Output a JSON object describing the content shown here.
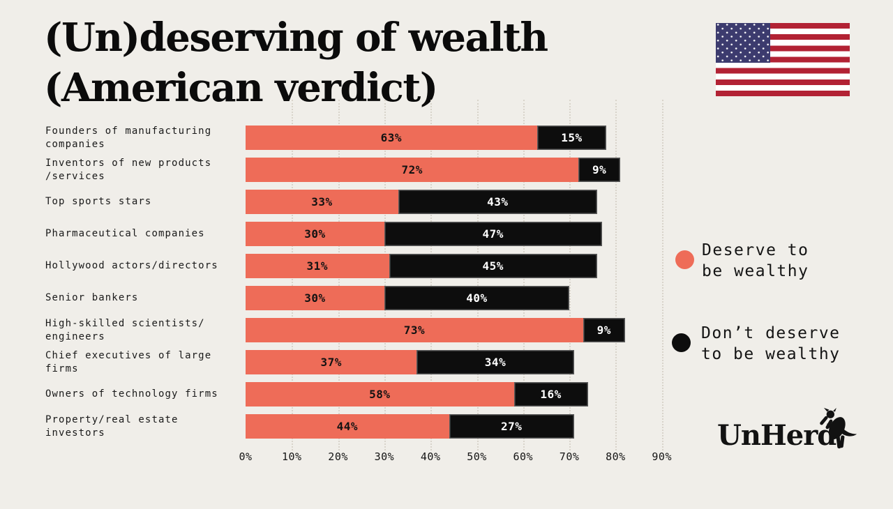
{
  "title": {
    "line1": "(Un)deserving of wealth",
    "line2": "(American verdict)"
  },
  "colors": {
    "background": "#F0EEE9",
    "deserve": "#EE6C58",
    "dont_deserve": "#0D0D0D",
    "grid": "#D8D3CA",
    "flag_red": "#B22234",
    "flag_blue": "#3C3B6E"
  },
  "chart_data": {
    "type": "bar",
    "orientation": "horizontal",
    "stacked": true,
    "title": "(Un)deserving of wealth (American verdict)",
    "categories": [
      "Founders of manufacturing companies",
      "Inventors of new products /services",
      "Top sports stars",
      "Pharmaceutical companies",
      "Hollywood actors/directors",
      "Senior bankers",
      "High-skilled scientists/ engineers",
      "Chief executives of large firms",
      "Owners of technology firms",
      "Property/real estate investors"
    ],
    "category_lines": [
      [
        "Founders of manufacturing",
        "companies"
      ],
      [
        "Inventors of new products",
        "/services"
      ],
      [
        "Top sports stars"
      ],
      [
        "Pharmaceutical companies"
      ],
      [
        "Hollywood actors/directors"
      ],
      [
        "Senior bankers"
      ],
      [
        "High-skilled scientists/",
        "engineers"
      ],
      [
        "Chief executives of large",
        "firms"
      ],
      [
        "Owners of technology firms"
      ],
      [
        "Property/real estate",
        "investors"
      ]
    ],
    "series": [
      {
        "name": "Deserve to be wealthy",
        "color": "#EE6C58",
        "values": [
          63,
          72,
          33,
          30,
          31,
          30,
          73,
          37,
          58,
          44
        ]
      },
      {
        "name": "Don’t deserve to be wealthy",
        "color": "#0D0D0D",
        "values": [
          15,
          9,
          43,
          47,
          45,
          40,
          9,
          34,
          16,
          27
        ]
      }
    ],
    "value_suffix": "%",
    "x_ticks": [
      "0%",
      "10%",
      "20%",
      "30%",
      "40%",
      "50%",
      "60%",
      "70%",
      "80%",
      "90%"
    ],
    "xlim": [
      0,
      100
    ],
    "grid": "vertical-dotted",
    "legend_position": "right"
  },
  "legend": [
    {
      "line1": "Deserve to",
      "line2": "be wealthy",
      "color": "#EE6C58"
    },
    {
      "line1": "Don’t deserve",
      "line2": "to be wealthy",
      "color": "#0D0D0D"
    }
  ],
  "branding": {
    "logo_text": "UnHerd"
  }
}
